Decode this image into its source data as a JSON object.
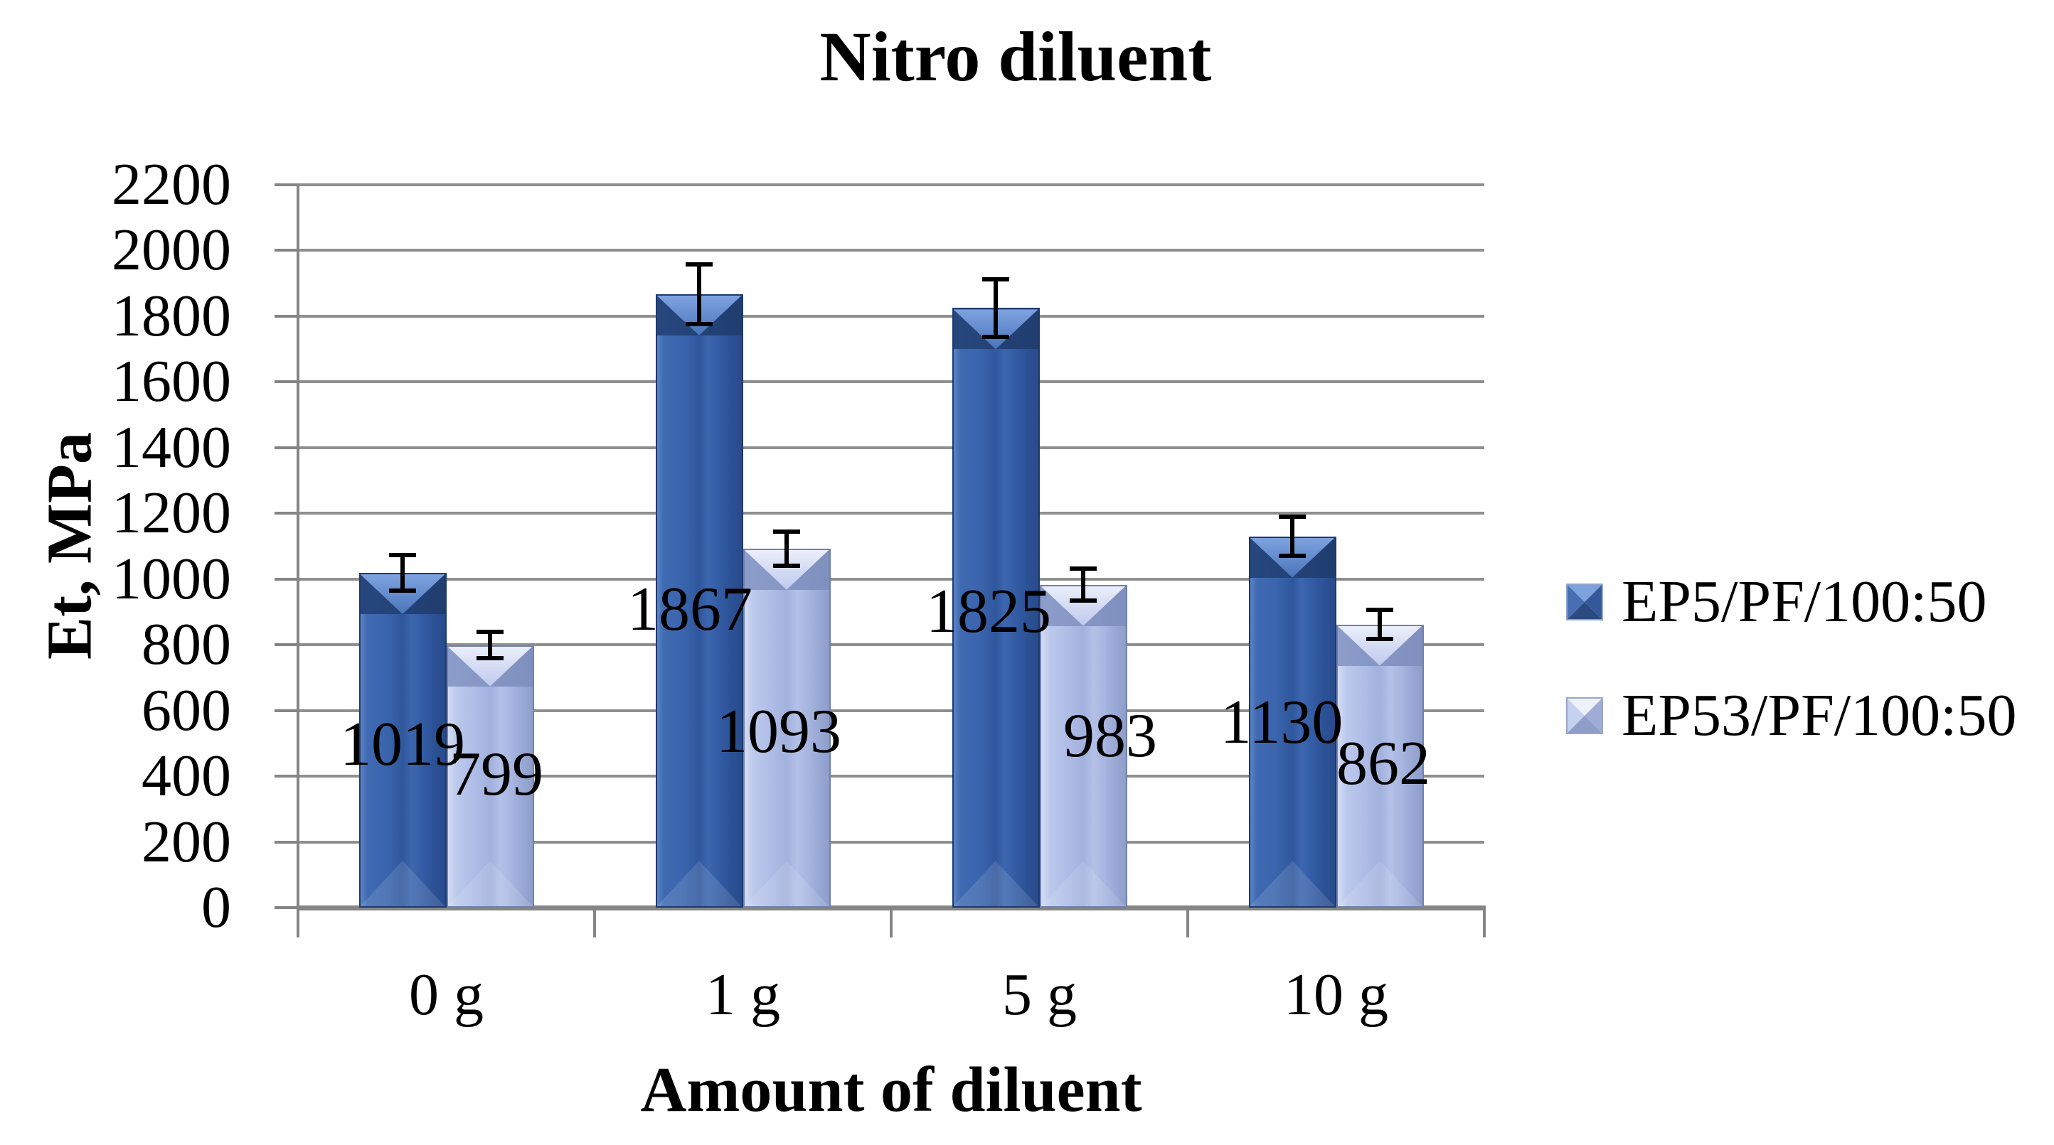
{
  "title": "Nitro diluent",
  "y_axis": {
    "title": "Et, MPa",
    "tick_labels": [
      "0",
      "200",
      "400",
      "600",
      "800",
      "1000",
      "1200",
      "1400",
      "1600",
      "1800",
      "2000",
      "2200"
    ]
  },
  "x_axis": {
    "title": "Amount of diluent",
    "categories": [
      "0 g",
      "1 g",
      "5 g",
      "10 g"
    ]
  },
  "legend": {
    "position": "right",
    "items": [
      {
        "label": "EP5/PF/100:50",
        "color": "#3A64AA"
      },
      {
        "label": "EP53/PF/100:50",
        "color": "#AEBCE3"
      }
    ]
  },
  "chart_data": {
    "type": "bar",
    "title": "Nitro diluent",
    "xlabel": "Amount of diluent",
    "ylabel": "Et, MPa",
    "ylim": [
      0,
      2200
    ],
    "ytick_step": 200,
    "grid": true,
    "legend_position": "right",
    "categories": [
      "0 g",
      "1 g",
      "5 g",
      "10 g"
    ],
    "series": [
      {
        "name": "EP5/PF/100:50",
        "color": "#3A64AA",
        "values": [
          1019,
          1867,
          1825,
          1130
        ],
        "error_bars": [
          55,
          90,
          88,
          60
        ]
      },
      {
        "name": "EP53/PF/100:50",
        "color": "#AEBCE3",
        "values": [
          799,
          1093,
          983,
          862
        ],
        "error_bars": [
          40,
          52,
          48,
          45
        ]
      }
    ],
    "data_labels": [
      1019,
      799,
      1867,
      1093,
      1825,
      983,
      1130,
      862
    ],
    "data_labels_visible": true
  }
}
